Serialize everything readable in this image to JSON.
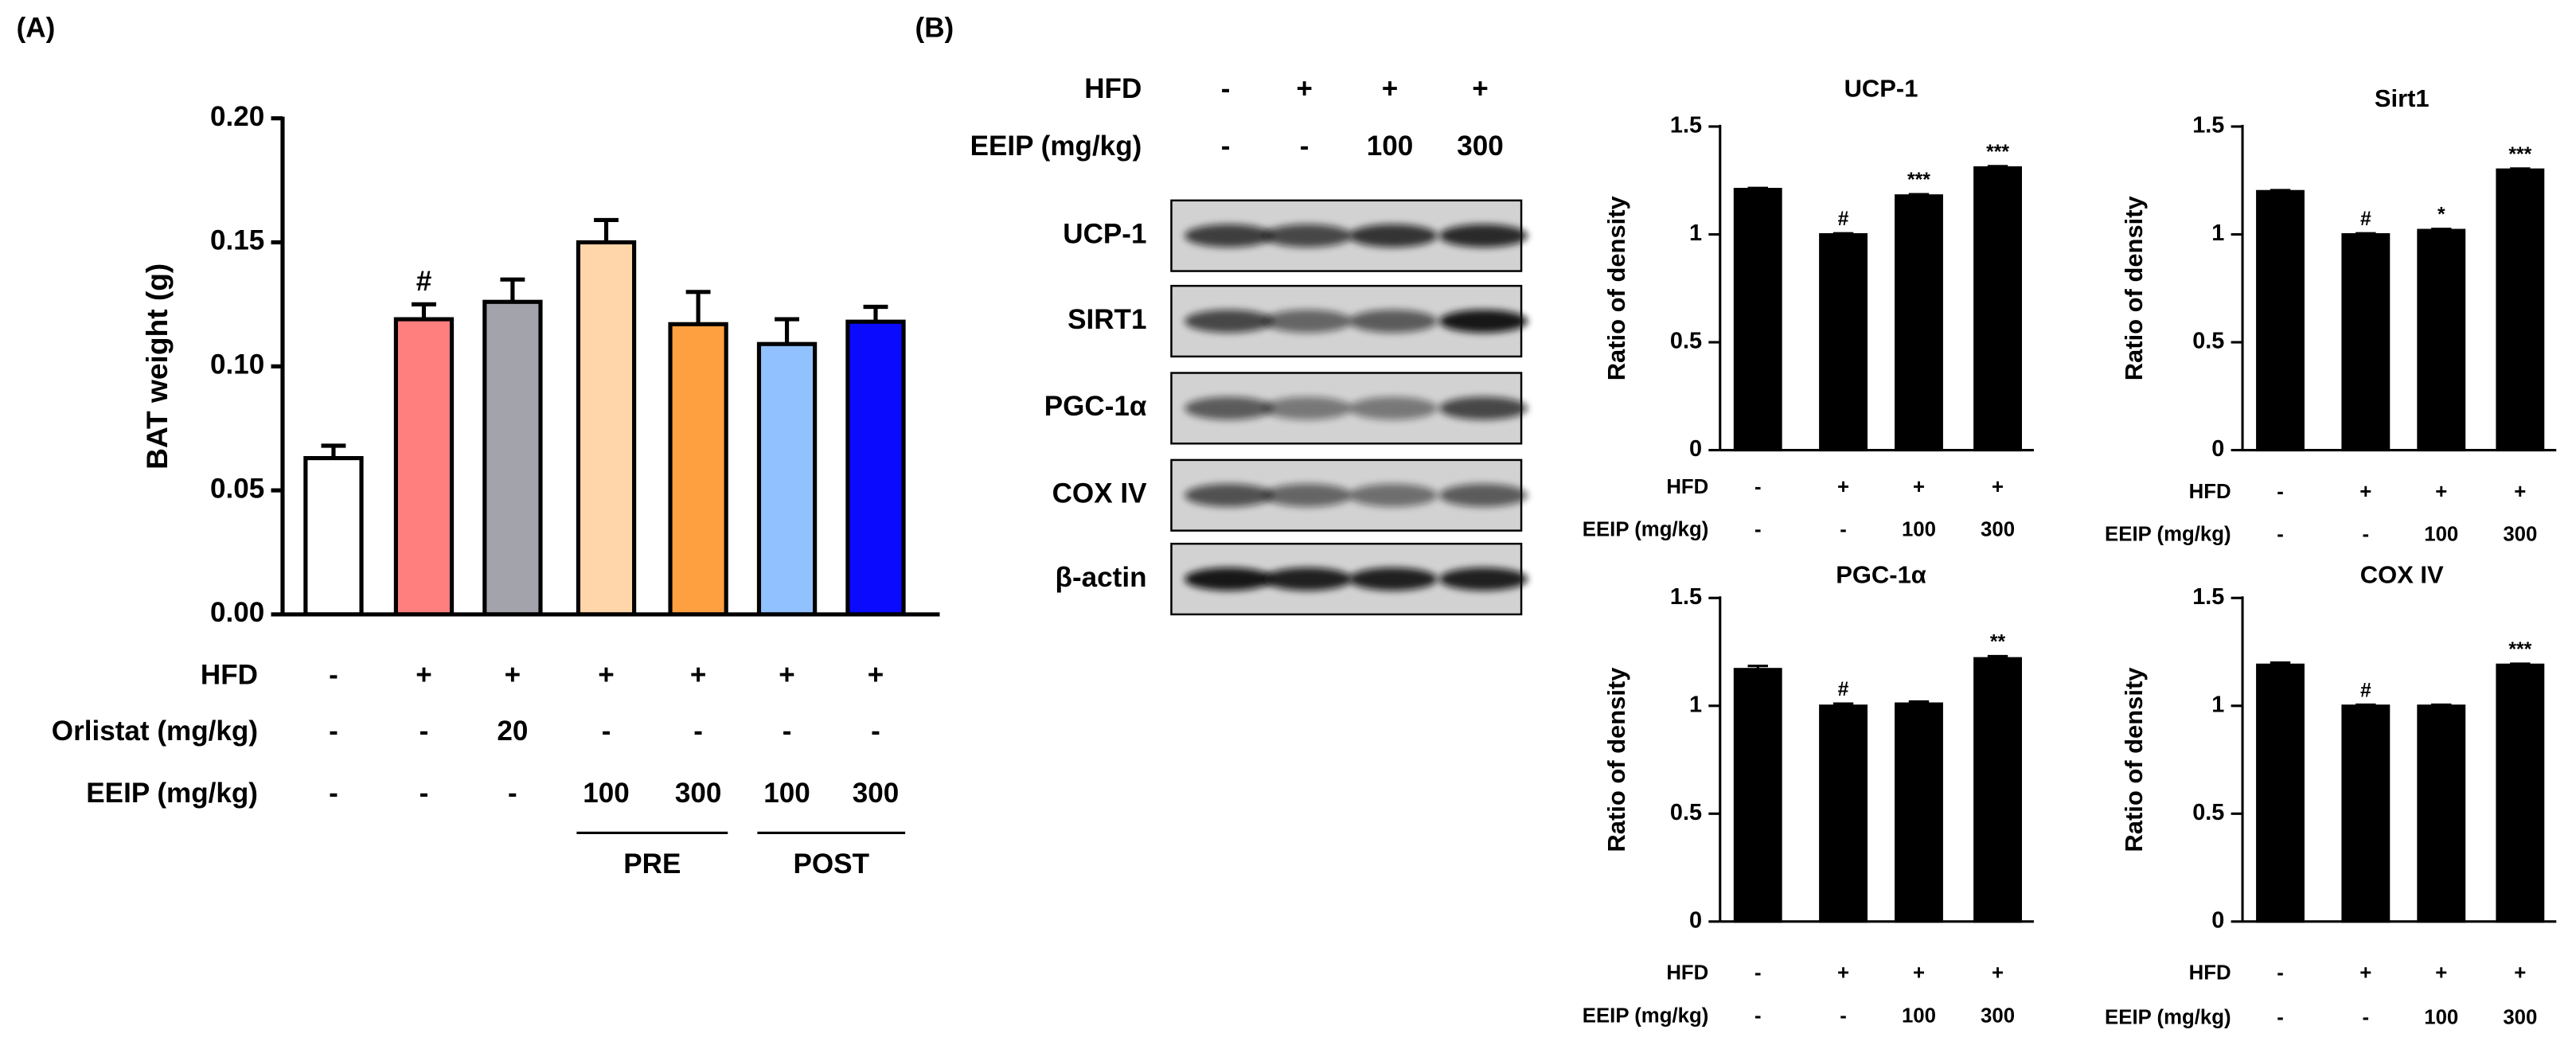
{
  "chart_data": [
    {
      "type": "bar",
      "panel_label": "(A)",
      "y_label": "BAT weight (g)",
      "values": [
        0.063,
        0.119,
        0.126,
        0.15,
        0.117,
        0.109,
        0.118
      ],
      "errors": [
        0.005,
        0.006,
        0.009,
        0.009,
        0.013,
        0.01,
        0.006
      ],
      "colors": [
        "#ffffff",
        "#ff7f7f",
        "#a3a3ab",
        "#ffd6aa",
        "#ffa040",
        "#92c1ff",
        "#0a0aff"
      ],
      "annotations": [
        null,
        "#",
        null,
        null,
        null,
        null,
        null
      ],
      "ylim": [
        0,
        0.2
      ],
      "yticks": [
        {
          "value": 0,
          "label": "0.00"
        },
        0.05,
        {
          "value": 0.1,
          "label": "0.10"
        },
        0.15,
        {
          "value": 0.2,
          "label": "0.20"
        }
      ],
      "conditions": [
        {
          "label": "HFD",
          "values": [
            "-",
            "+",
            "+",
            "+",
            "+",
            "+",
            "+"
          ]
        },
        {
          "label": "Orlistat (mg/kg)",
          "values": [
            "-",
            "-",
            "20",
            "-",
            "-",
            "-",
            "-"
          ]
        },
        {
          "label": "EEIP (mg/kg)",
          "values": [
            "-",
            "-",
            "-",
            "100",
            "300",
            "100",
            "300"
          ]
        }
      ],
      "groups": [
        "PRE",
        "POST"
      ]
    },
    {
      "type": "bar",
      "title": "UCP-1",
      "y_label": "Ratio of density",
      "color": "#000000",
      "values": [
        1.21,
        1.0,
        1.18,
        1.31
      ],
      "errors": [
        0.005,
        0.005,
        0.006,
        0.006
      ],
      "annotations": [
        null,
        "#",
        "***",
        "***"
      ],
      "ylim": [
        0,
        1.5
      ],
      "yticks": [
        0,
        0.5,
        1,
        1.5
      ],
      "conditions": [
        {
          "label": "HFD",
          "values": [
            "-",
            "+",
            "+",
            "+"
          ]
        },
        {
          "label": "EEIP  (mg/kg)",
          "values": [
            "-",
            "-",
            "100",
            "300"
          ]
        }
      ]
    },
    {
      "type": "bar",
      "title": "Sirt1",
      "y_label": "Ratio of density",
      "color": "#000000",
      "values": [
        1.2,
        1.0,
        1.02,
        1.3
      ],
      "errors": [
        0.005,
        0.005,
        0.005,
        0.005
      ],
      "annotations": [
        null,
        "#",
        "*",
        "***"
      ],
      "ylim": [
        0,
        1.5
      ],
      "yticks": [
        0,
        0.5,
        1,
        1.5
      ],
      "conditions": [
        {
          "label": "HFD",
          "values": [
            "-",
            "+",
            "+",
            "+"
          ]
        },
        {
          "label": "EEIP  (mg/kg)",
          "values": [
            "-",
            "-",
            "100",
            "300"
          ]
        }
      ]
    },
    {
      "type": "bar",
      "title": "PGC-1α",
      "y_label": "Ratio of density",
      "color": "#000000",
      "values": [
        1.17,
        1.0,
        1.01,
        1.22
      ],
      "errors": [
        0.015,
        0.01,
        0.01,
        0.01
      ],
      "annotations": [
        null,
        "#",
        null,
        "**"
      ],
      "ylim": [
        0,
        1.5
      ],
      "yticks": [
        0,
        0.5,
        1,
        1.5
      ],
      "conditions": [
        {
          "label": "HFD",
          "values": [
            "-",
            "+",
            "+",
            "+"
          ]
        },
        {
          "label": "EEIP  (mg/kg)",
          "values": [
            "-",
            "-",
            "100",
            "300"
          ]
        }
      ]
    },
    {
      "type": "bar",
      "title": "COX IV",
      "y_label": "Ratio of density",
      "color": "#000000",
      "values": [
        1.19,
        1.0,
        1.0,
        1.19
      ],
      "errors": [
        0.01,
        0.005,
        0.005,
        0.005
      ],
      "annotations": [
        null,
        "#",
        null,
        "***"
      ],
      "ylim": [
        0,
        1.5
      ],
      "yticks": [
        0,
        0.5,
        1,
        1.5
      ],
      "conditions": [
        {
          "label": "HFD",
          "values": [
            "-",
            "+",
            "+",
            "+"
          ]
        },
        {
          "label": "EEIP  (mg/kg)",
          "values": [
            "-",
            "-",
            "100",
            "300"
          ]
        }
      ]
    }
  ],
  "blot": {
    "panel_label": "(B)",
    "conditions": [
      {
        "label": "HFD",
        "values": [
          "-",
          "+",
          "+",
          "+"
        ]
      },
      {
        "label": "EEIP (mg/kg)",
        "values": [
          "-",
          "-",
          "100",
          "300"
        ]
      }
    ],
    "rows": [
      "UCP-1",
      "SIRT1",
      "PGC-1α",
      "COX IV",
      "β-actin"
    ]
  }
}
